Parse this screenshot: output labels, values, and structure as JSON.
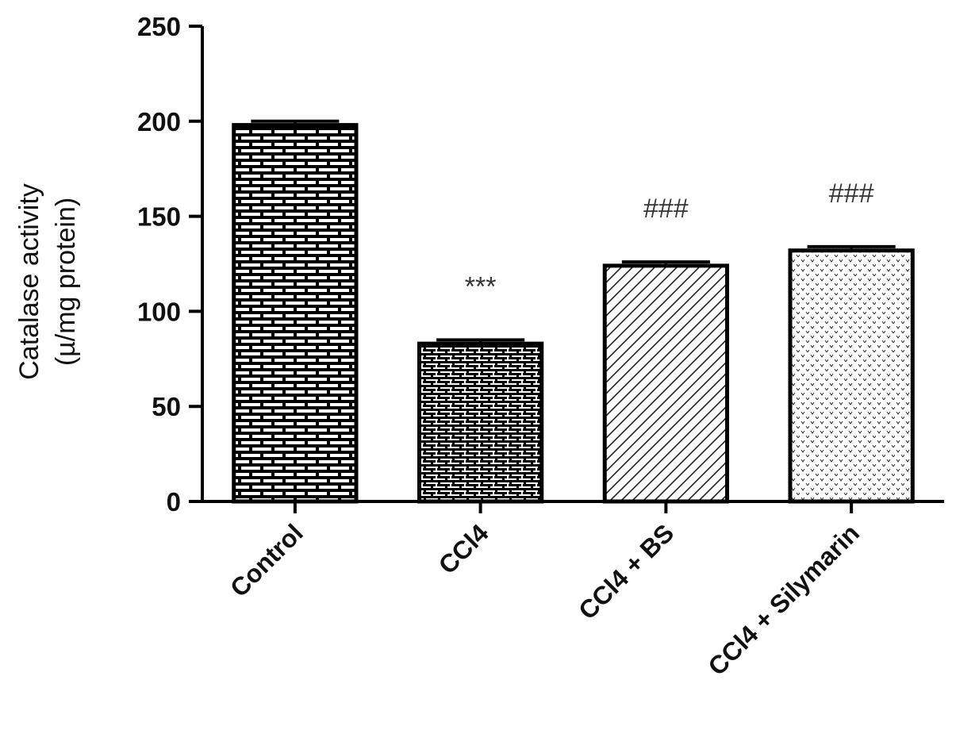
{
  "chart_data": {
    "type": "bar",
    "categories": [
      "Control",
      "CCl4",
      "CCl4 + BS",
      "CCl4 + Silymarin"
    ],
    "values": [
      198,
      83,
      124,
      132
    ],
    "error": [
      2,
      2,
      2,
      2
    ],
    "annotations": [
      "",
      "***",
      "###",
      "###"
    ],
    "patterns": [
      "brick-bold",
      "brick-fine",
      "diagonal-hatch",
      "dotted"
    ],
    "ylabel_lines": [
      "Catalase activity",
      "(µ/mg protein)"
    ],
    "xlabel": "",
    "title": "",
    "ylim": [
      0,
      250
    ],
    "yticks": [
      0,
      50,
      100,
      150,
      200,
      250
    ],
    "grid": false,
    "colors": {
      "bar_stroke": "#000000",
      "bar_fill": "#ffffff",
      "axis": "#000000"
    }
  }
}
